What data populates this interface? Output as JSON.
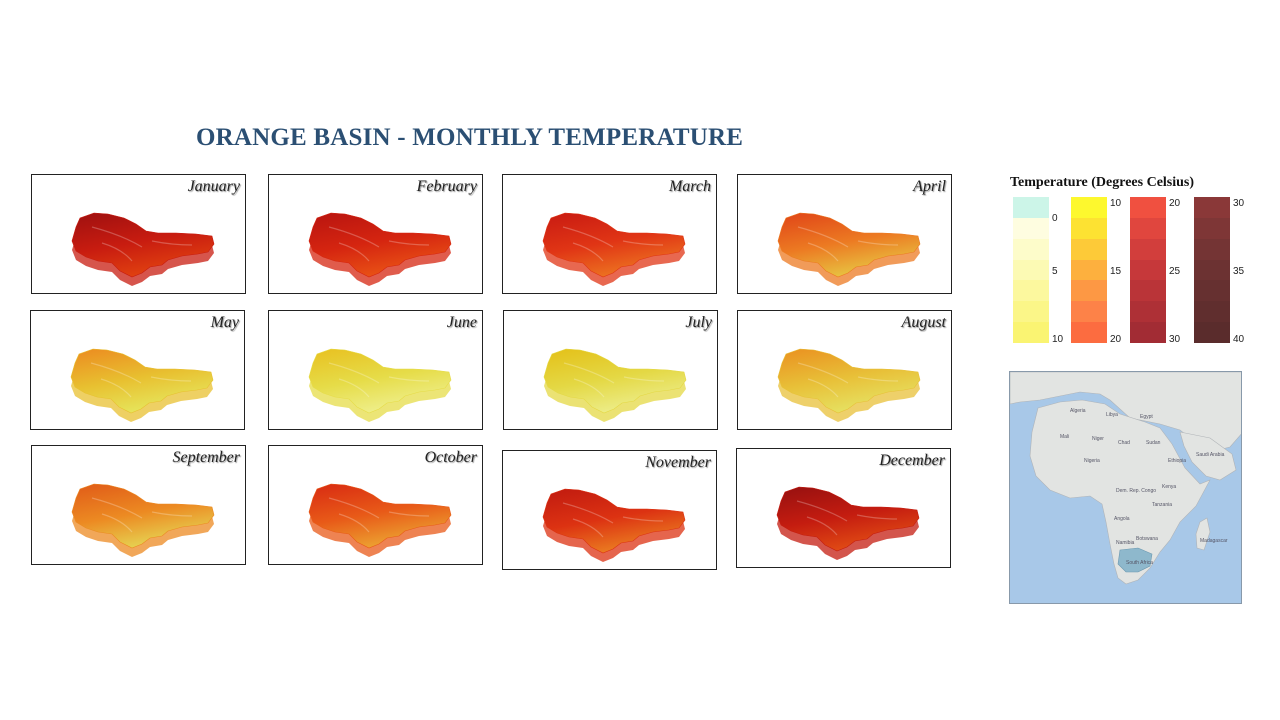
{
  "title": "ORANGE BASIN - MONTHLY TEMPERATURE",
  "months": [
    {
      "label": "January",
      "top_color": "#9e1010",
      "mid_color": "#c81c10",
      "low_color": "#e04010"
    },
    {
      "label": "February",
      "top_color": "#b81410",
      "mid_color": "#d52510",
      "low_color": "#e85015"
    },
    {
      "label": "March",
      "top_color": "#c81a12",
      "mid_color": "#e03515",
      "low_color": "#ec7020"
    },
    {
      "label": "April",
      "top_color": "#e04418",
      "mid_color": "#ec7a22",
      "low_color": "#e8c040"
    },
    {
      "label": "May",
      "top_color": "#ec8a20",
      "mid_color": "#e8c030",
      "low_color": "#e6e45a"
    },
    {
      "label": "June",
      "top_color": "#e8c020",
      "mid_color": "#e6dc48",
      "low_color": "#eeee88"
    },
    {
      "label": "July",
      "top_color": "#e4c018",
      "mid_color": "#e4d844",
      "low_color": "#ecec86"
    },
    {
      "label": "August",
      "top_color": "#ea9020",
      "mid_color": "#e8c038",
      "low_color": "#e6e060"
    },
    {
      "label": "September",
      "top_color": "#e05a18",
      "mid_color": "#ec8a22",
      "low_color": "#e6d050"
    },
    {
      "label": "October",
      "top_color": "#d82a12",
      "mid_color": "#e85a18",
      "low_color": "#eca030"
    },
    {
      "label": "November",
      "top_color": "#c01a10",
      "mid_color": "#dc3212",
      "low_color": "#ea7a20"
    },
    {
      "label": "December",
      "top_color": "#961010",
      "mid_color": "#c41c10",
      "low_color": "#e04a14"
    }
  ],
  "legend": {
    "title": "Temperature (Degrees Celsius)",
    "ramps": [
      {
        "colors": [
          "#ccf5e8",
          "#fefde0",
          "#fdfcca",
          "#fcfab4",
          "#fcf89e",
          "#fbf688",
          "#faf472"
        ],
        "labels": [
          "0",
          "5",
          "10"
        ]
      },
      {
        "colors": [
          "#fdf82e",
          "#fde232",
          "#fdca38",
          "#fdb03e",
          "#fd9844",
          "#fd8248",
          "#fc6c40"
        ],
        "labels": [
          "10",
          "15",
          "20"
        ]
      },
      {
        "colors": [
          "#f05040",
          "#e0463e",
          "#d23e3c",
          "#c6383a",
          "#ba3438",
          "#ae3036",
          "#a22c34"
        ],
        "labels": [
          "20",
          "25",
          "30"
        ]
      },
      {
        "colors": [
          "#8a3838",
          "#7e3636",
          "#743434",
          "#6c3232",
          "#663030",
          "#602e2e",
          "#5a2c2c"
        ],
        "labels": [
          "30",
          "35",
          "40"
        ]
      }
    ]
  },
  "locator": {
    "ocean_color": "#a8c8e8",
    "land_color": "#e2e4e2",
    "highlight_color": "#8eb8cc",
    "labels": {
      "algeria": "Algeria",
      "libya": "Libya",
      "egypt": "Egypt",
      "mali": "Mali",
      "niger": "Niger",
      "chad": "Chad",
      "sudan": "Sudan",
      "ethiopia": "Ethiopia",
      "nigeria": "Nigeria",
      "drc": "Dem. Rep. Congo",
      "angola": "Angola",
      "tanzania": "Tanzania",
      "namibia": "Namibia",
      "botswana": "Botswana",
      "south_africa": "South Africa",
      "madagascar": "Madagascar",
      "kenya": "Kenya",
      "saudi": "Saudi Arabia"
    }
  }
}
